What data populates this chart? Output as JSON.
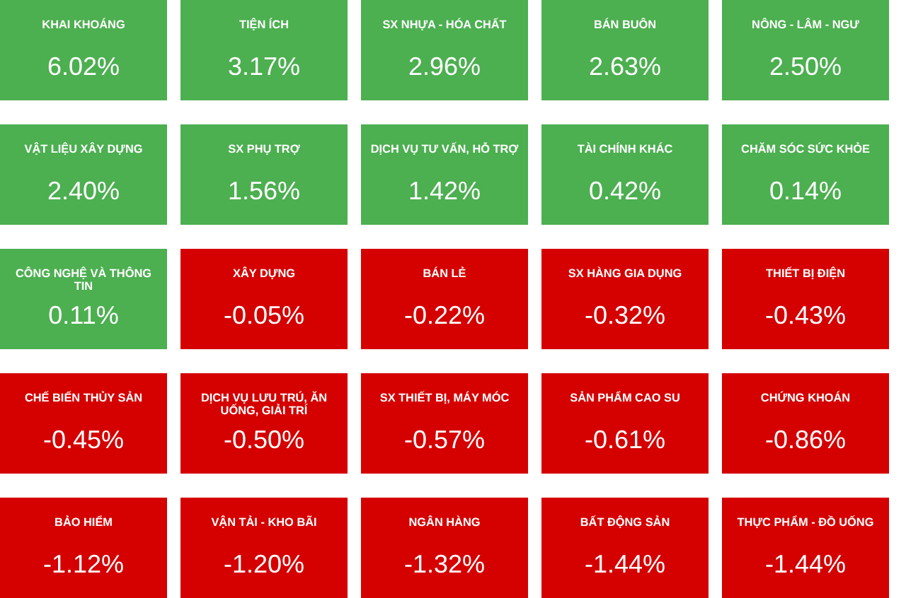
{
  "chart_data": {
    "type": "other",
    "categories": [
      "KHAI KHOÁNG",
      "TIỆN ÍCH",
      "SX NHỰA - HÓA CHẤT",
      "BÁN BUÔN",
      "NÔNG - LÂM - NGƯ",
      "VẬT LIỆU XÂY DỰNG",
      "SX PHỤ TRỢ",
      "DỊCH VỤ TƯ VẤN, HỖ TRỢ",
      "TÀI CHÍNH KHÁC",
      "CHĂM SÓC SỨC KHỎE",
      "CÔNG NGHỆ VÀ THÔNG TIN",
      "XÂY DỰNG",
      "BÁN LẺ",
      "SX HÀNG GIA DỤNG",
      "THIẾT BỊ ĐIỆN",
      "CHẾ BIẾN THỦY SẢN",
      "DỊCH VỤ LƯU TRÚ, ĂN UỐNG, GIẢI TRÍ",
      "SX THIẾT BỊ, MÁY MÓC",
      "SẢN PHẨM CAO SU",
      "CHỨNG KHOÁN",
      "BẢO HIỂM",
      "VẬN TẢI - KHO BÃI",
      "NGÂN HÀNG",
      "BẤT ĐỘNG SẢN",
      "THỰC PHẨM - ĐỒ UỐNG"
    ],
    "values": [
      6.02,
      3.17,
      2.96,
      2.63,
      2.5,
      2.4,
      1.56,
      1.42,
      0.42,
      0.14,
      0.11,
      -0.05,
      -0.22,
      -0.32,
      -0.43,
      -0.45,
      -0.5,
      -0.57,
      -0.61,
      -0.86,
      -1.12,
      -1.2,
      -1.32,
      -1.44,
      -1.44
    ],
    "value_labels": [
      "6.02%",
      "3.17%",
      "2.96%",
      "2.63%",
      "2.50%",
      "2.40%",
      "1.56%",
      "1.42%",
      "0.42%",
      "0.14%",
      "0.11%",
      "-0.05%",
      "-0.22%",
      "-0.32%",
      "-0.43%",
      "-0.45%",
      "-0.50%",
      "-0.57%",
      "-0.61%",
      "-0.86%",
      "-1.12%",
      "-1.20%",
      "-1.32%",
      "-1.44%",
      "-1.44%"
    ],
    "colors": [
      "#4caf50",
      "#4caf50",
      "#4caf50",
      "#4caf50",
      "#4caf50",
      "#4caf50",
      "#4caf50",
      "#4caf50",
      "#4caf50",
      "#4caf50",
      "#4caf50",
      "#d50000",
      "#d50000",
      "#d50000",
      "#d50000",
      "#d50000",
      "#d50000",
      "#d50000",
      "#d50000",
      "#d50000",
      "#d50000",
      "#d50000",
      "#d50000",
      "#d50000",
      "#d50000"
    ]
  }
}
